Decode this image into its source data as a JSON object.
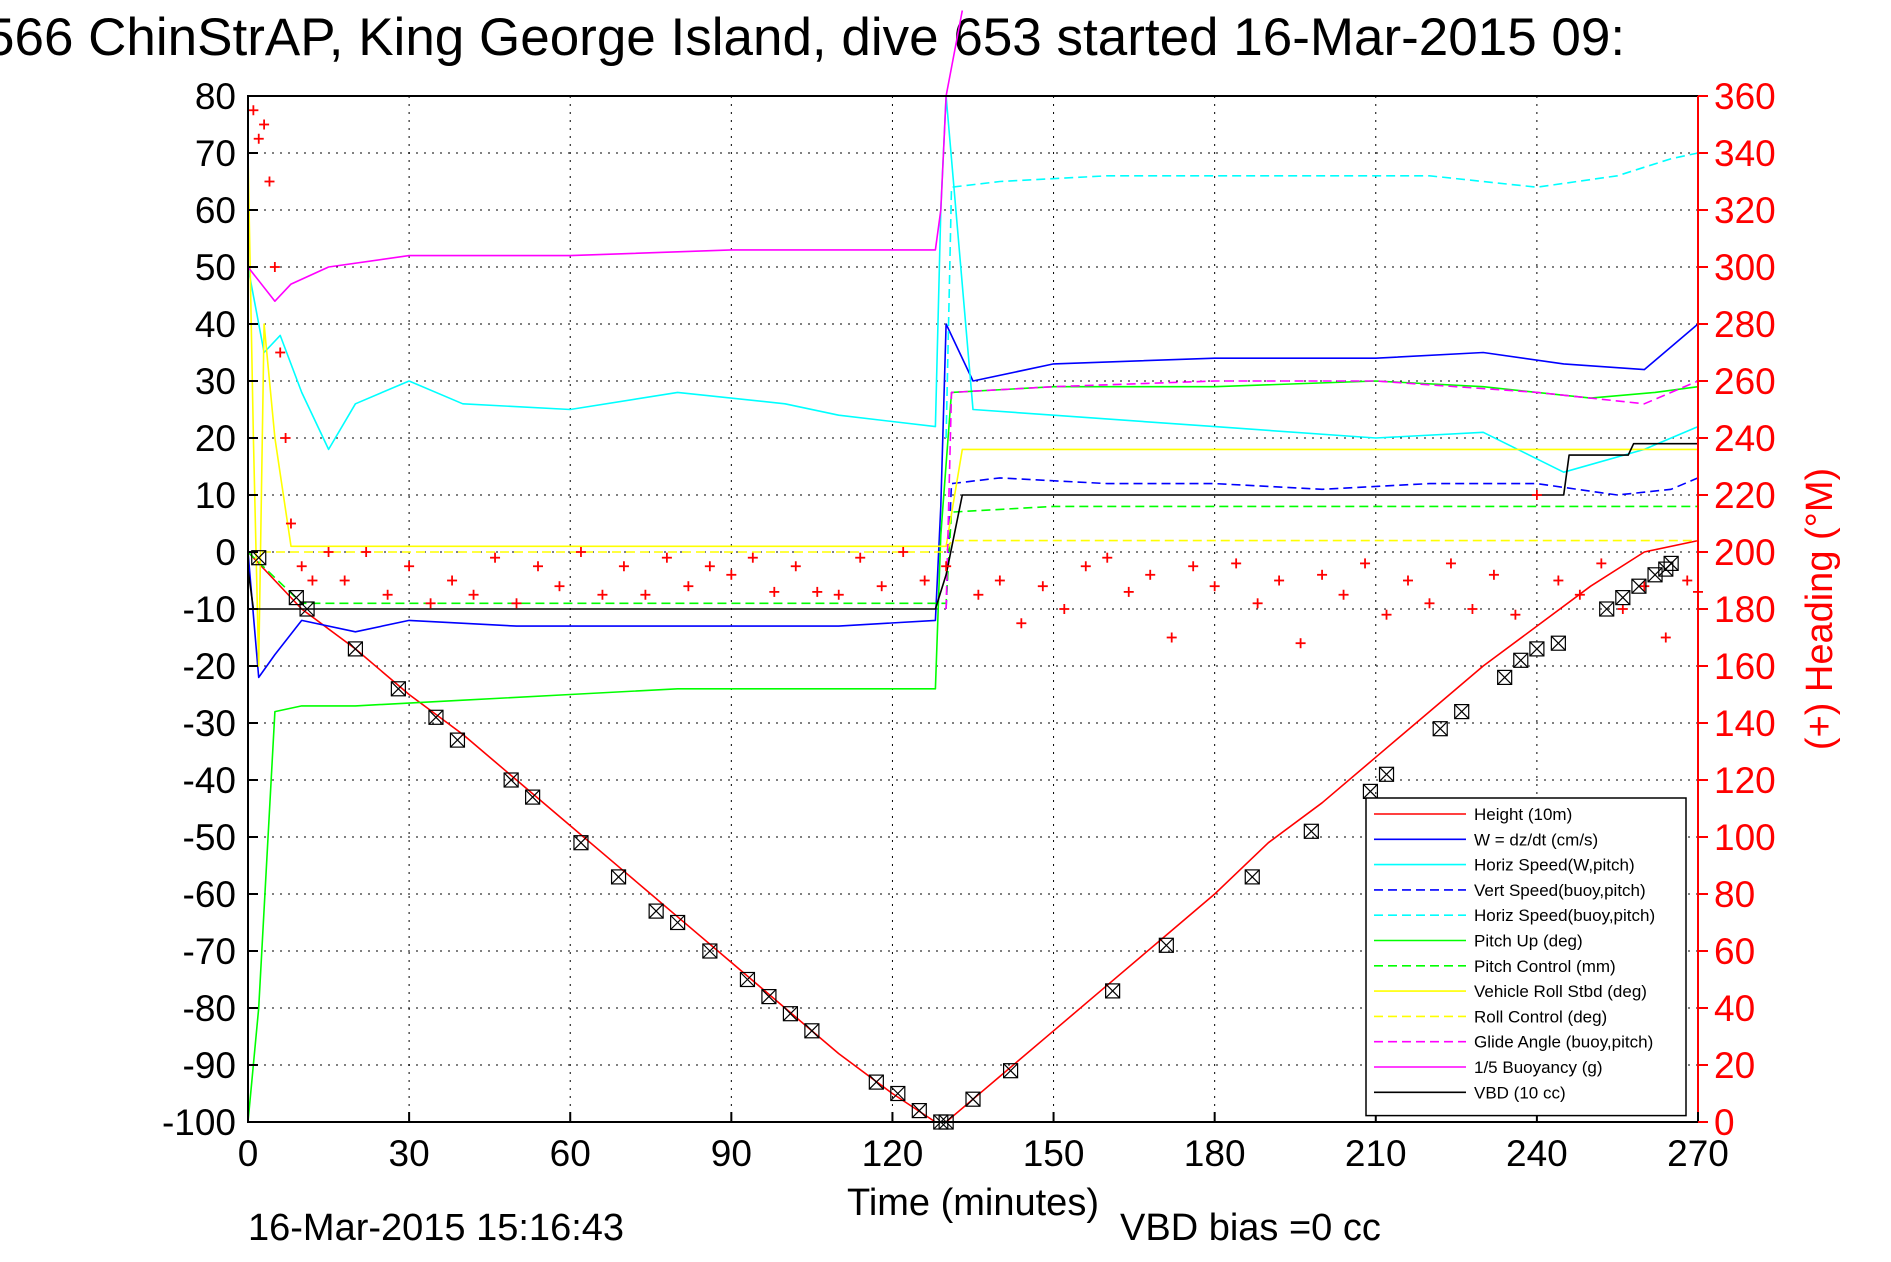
{
  "chart_data": {
    "type": "line",
    "title": "566 ChinStrAP, King George Island, dive 653 started 16-Mar-2015 09:",
    "xlabel": "Time (minutes)",
    "ylabel_right": "(+) Heading (°M)",
    "xlim": [
      0,
      270
    ],
    "ylim": [
      -100,
      80
    ],
    "y2lim": [
      0,
      360
    ],
    "grid": true,
    "legend_position": "lower-right",
    "x_ticks": [
      "0",
      "30",
      "60",
      "90",
      "120",
      "150",
      "180",
      "210",
      "240",
      "270"
    ],
    "y_ticks": [
      "80",
      "70",
      "60",
      "50",
      "40",
      "30",
      "20",
      "10",
      "0",
      "-10",
      "-20",
      "-30",
      "-40",
      "-50",
      "-60",
      "-70",
      "-80",
      "-90",
      "-100"
    ],
    "y2_ticks": [
      "360",
      "340",
      "320",
      "300",
      "280",
      "260",
      "240",
      "220",
      "200",
      "180",
      "160",
      "140",
      "120",
      "100",
      "80",
      "60",
      "40",
      "20",
      "0"
    ],
    "series": [
      {
        "name": "Height (10m)",
        "color": "#ff0000",
        "style": "solid",
        "x": [
          0,
          10,
          20,
          30,
          40,
          50,
          60,
          70,
          80,
          90,
          100,
          110,
          120,
          128,
          130,
          135,
          140,
          150,
          160,
          170,
          180,
          190,
          200,
          210,
          220,
          230,
          240,
          250,
          260,
          270
        ],
        "y": [
          0,
          -10,
          -17,
          -25,
          -32,
          -40,
          -48,
          -56,
          -64,
          -72,
          -80,
          -88,
          -95,
          -100,
          -100,
          -96,
          -92,
          -84,
          -76,
          -68,
          -60,
          -51,
          -44,
          -36,
          -28,
          -20,
          -13,
          -6,
          0,
          2
        ]
      },
      {
        "name": "W = dz/dt (cm/s)",
        "color": "#0000ff",
        "style": "solid",
        "x": [
          0,
          2,
          5,
          10,
          20,
          30,
          50,
          70,
          90,
          110,
          128,
          129,
          130,
          135,
          150,
          180,
          210,
          230,
          245,
          260,
          270
        ],
        "y": [
          0,
          -22,
          -18,
          -12,
          -14,
          -12,
          -13,
          -13,
          -13,
          -13,
          -12,
          8,
          40,
          30,
          33,
          34,
          34,
          35,
          33,
          32,
          40
        ]
      },
      {
        "name": "Horiz Speed(W,pitch)",
        "color": "#00ffff",
        "style": "solid",
        "x": [
          0,
          3,
          6,
          10,
          15,
          20,
          30,
          40,
          60,
          80,
          100,
          110,
          128,
          129,
          130,
          135,
          150,
          180,
          210,
          230,
          245,
          260,
          270
        ],
        "y": [
          50,
          35,
          38,
          28,
          18,
          26,
          30,
          26,
          25,
          28,
          26,
          24,
          22,
          60,
          80,
          25,
          24,
          22,
          20,
          21,
          14,
          18,
          22
        ]
      },
      {
        "name": "Vert Speed(buoy,pitch)",
        "color": "#0000ff",
        "style": "dashed",
        "x": [
          130,
          131,
          140,
          160,
          180,
          200,
          220,
          240,
          255,
          265,
          270
        ],
        "y": [
          -10,
          12,
          13,
          12,
          12,
          11,
          12,
          12,
          10,
          11,
          13
        ]
      },
      {
        "name": "Horiz Speed(buoy,pitch)",
        "color": "#00ffff",
        "style": "dashed",
        "x": [
          130,
          131,
          140,
          160,
          180,
          200,
          220,
          240,
          255,
          265,
          270
        ],
        "y": [
          20,
          64,
          65,
          66,
          66,
          66,
          66,
          64,
          66,
          69,
          70
        ]
      },
      {
        "name": "Pitch Up (deg)",
        "color": "#00ff00",
        "style": "solid",
        "x": [
          0,
          2,
          5,
          10,
          20,
          40,
          60,
          80,
          100,
          120,
          128,
          129,
          131,
          150,
          180,
          210,
          230,
          250,
          262,
          270
        ],
        "y": [
          -100,
          -80,
          -28,
          -27,
          -27,
          -26,
          -25,
          -24,
          -24,
          -24,
          -24,
          3,
          28,
          29,
          29,
          30,
          29,
          27,
          28,
          29
        ]
      },
      {
        "name": "Pitch Control (mm)",
        "color": "#00ff00",
        "style": "dashed",
        "x": [
          0,
          10,
          30,
          60,
          90,
          128,
          130,
          131,
          150,
          180,
          210,
          240,
          270
        ],
        "y": [
          0,
          -9,
          -9,
          -9,
          -9,
          -9,
          -9,
          7,
          8,
          8,
          8,
          8,
          8
        ]
      },
      {
        "name": "Vehicle Roll Stbd (deg)",
        "color": "#ffff00",
        "style": "solid",
        "x": [
          0,
          1,
          2,
          3,
          5,
          8,
          10,
          30,
          60,
          90,
          128,
          130,
          133,
          150,
          180,
          210,
          240,
          270
        ],
        "y": [
          70,
          20,
          -20,
          40,
          20,
          1,
          1,
          1,
          1,
          1,
          1,
          1,
          18,
          18,
          18,
          18,
          18,
          18
        ]
      },
      {
        "name": "Roll Control (deg)",
        "color": "#ffff00",
        "style": "dashed",
        "x": [
          0,
          10,
          60,
          128,
          130,
          131,
          200,
          240,
          270
        ],
        "y": [
          0,
          0,
          0,
          0,
          0,
          2,
          2,
          2,
          2
        ]
      },
      {
        "name": "Glide Angle (buoy,pitch)",
        "color": "#ff00ff",
        "style": "dashed",
        "x": [
          130,
          131,
          150,
          180,
          210,
          240,
          260,
          270
        ],
        "y": [
          -10,
          28,
          29,
          30,
          30,
          28,
          26,
          30
        ]
      },
      {
        "name": "1/5 Buoyancy (g)",
        "color": "#ff00ff",
        "style": "solid",
        "x": [
          0,
          5,
          8,
          15,
          30,
          60,
          90,
          128,
          129,
          130,
          133
        ],
        "y": [
          50,
          44,
          47,
          50,
          52,
          52,
          53,
          53,
          60,
          80,
          95
        ]
      },
      {
        "name": "VBD (10 cc)",
        "color": "#000000",
        "style": "solid",
        "x": [
          0,
          1,
          2,
          30,
          60,
          90,
          128,
          130,
          133,
          180,
          245,
          246,
          257,
          258,
          270
        ],
        "y": [
          -3,
          -10,
          -10,
          -10,
          -10,
          -10,
          -10,
          -4,
          10,
          10,
          10,
          17,
          17,
          19,
          19
        ]
      }
    ],
    "heading": {
      "name": "(+) Heading",
      "color": "#ff0000",
      "marker": "+",
      "axis": "right",
      "x": [
        1,
        2,
        3,
        4,
        5,
        6,
        7,
        8,
        10,
        12,
        15,
        18,
        22,
        26,
        30,
        34,
        38,
        42,
        46,
        50,
        54,
        58,
        62,
        66,
        70,
        74,
        78,
        82,
        86,
        90,
        94,
        98,
        102,
        106,
        110,
        114,
        118,
        122,
        126,
        130,
        136,
        140,
        144,
        148,
        152,
        156,
        160,
        164,
        168,
        172,
        176,
        180,
        184,
        188,
        192,
        196,
        200,
        204,
        208,
        212,
        216,
        220,
        224,
        228,
        232,
        236,
        240,
        244,
        248,
        252,
        256,
        260,
        264,
        268,
        270
      ],
      "y": [
        355,
        345,
        350,
        330,
        300,
        270,
        240,
        210,
        195,
        190,
        200,
        190,
        200,
        185,
        195,
        182,
        190,
        185,
        198,
        182,
        195,
        188,
        200,
        185,
        195,
        185,
        198,
        188,
        195,
        192,
        198,
        186,
        195,
        186,
        185,
        198,
        188,
        200,
        190,
        195,
        185,
        190,
        175,
        188,
        180,
        195,
        198,
        186,
        192,
        170,
        195,
        188,
        196,
        182,
        190,
        168,
        192,
        185,
        196,
        178,
        190,
        182,
        196,
        180,
        192,
        178,
        220,
        190,
        185,
        196,
        180,
        188,
        170,
        190,
        186
      ]
    },
    "markers": {
      "name": "dive markers",
      "color": "#000000",
      "symbol": "x-square",
      "x": [
        2,
        9,
        11,
        20,
        28,
        35,
        39,
        49,
        53,
        62,
        69,
        76,
        80,
        86,
        93,
        97,
        101,
        105,
        117,
        121,
        125,
        129,
        130,
        135,
        142,
        161,
        171,
        187,
        198,
        209,
        212,
        222,
        226,
        234,
        237,
        240,
        244,
        253,
        256,
        259,
        262,
        264,
        265
      ],
      "y": [
        -1,
        -8,
        -10,
        -17,
        -24,
        -29,
        -33,
        -40,
        -43,
        -51,
        -57,
        -63,
        -65,
        -70,
        -75,
        -78,
        -81,
        -84,
        -93,
        -95,
        -98,
        -100,
        -100,
        -96,
        -91,
        -77,
        -69,
        -57,
        -49,
        -42,
        -39,
        -31,
        -28,
        -22,
        -19,
        -17,
        -16,
        -10,
        -8,
        -6,
        -4,
        -3,
        -2
      ]
    }
  },
  "footer": {
    "timestamp": "16-Mar-2015 15:16:43",
    "vbd_bias": "VBD bias =0 cc"
  }
}
